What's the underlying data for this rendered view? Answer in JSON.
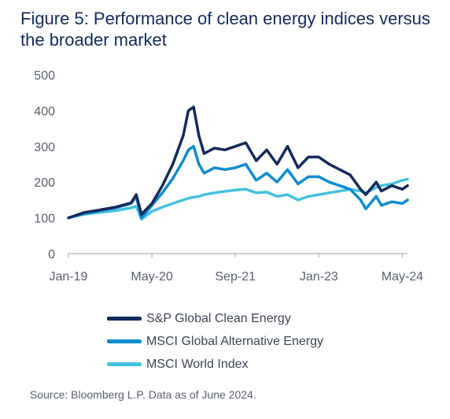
{
  "title": "Figure 5: Performance of clean energy indices versus the broader market",
  "source": "Source: Bloomberg L.P. Data as of June 2024.",
  "chart_data": {
    "type": "line",
    "title": "Figure 5: Performance of clean energy indices versus the broader market",
    "xlabel": "",
    "ylabel": "",
    "ylim": [
      0,
      500
    ],
    "yticks": [
      0,
      100,
      200,
      300,
      400,
      500
    ],
    "xlim": [
      "2019-01",
      "2024-06"
    ],
    "xticks": [
      {
        "label": "Jan-19",
        "date": "2019-01"
      },
      {
        "label": "May-20",
        "date": "2020-05"
      },
      {
        "label": "Sep-21",
        "date": "2021-09"
      },
      {
        "label": "Jan-23",
        "date": "2023-01"
      },
      {
        "label": "May-24",
        "date": "2024-05"
      }
    ],
    "grid": false,
    "legend_position": "bottom",
    "x": [
      "2019-01",
      "2019-04",
      "2019-07",
      "2019-10",
      "2020-01",
      "2020-02",
      "2020-03",
      "2020-05",
      "2020-07",
      "2020-09",
      "2020-11",
      "2020-12",
      "2021-01",
      "2021-02",
      "2021-03",
      "2021-05",
      "2021-07",
      "2021-09",
      "2021-11",
      "2022-01",
      "2022-03",
      "2022-05",
      "2022-07",
      "2022-09",
      "2022-11",
      "2023-01",
      "2023-03",
      "2023-05",
      "2023-07",
      "2023-09",
      "2023-10",
      "2023-12",
      "2024-01",
      "2024-03",
      "2024-05",
      "2024-06"
    ],
    "series": [
      {
        "name": "S&P Global Clean Energy",
        "color": "#142b5a",
        "values": [
          100,
          115,
          122,
          130,
          142,
          165,
          110,
          140,
          190,
          250,
          330,
          400,
          410,
          330,
          280,
          295,
          290,
          300,
          310,
          260,
          290,
          250,
          300,
          240,
          270,
          270,
          250,
          235,
          220,
          180,
          165,
          200,
          175,
          190,
          180,
          190
        ]
      },
      {
        "name": "MSCI Global Alternative Energy",
        "color": "#0e8ccd",
        "values": [
          100,
          112,
          120,
          128,
          140,
          160,
          100,
          135,
          170,
          210,
          260,
          290,
          300,
          250,
          225,
          240,
          235,
          240,
          250,
          205,
          225,
          200,
          235,
          195,
          215,
          215,
          200,
          190,
          180,
          150,
          125,
          160,
          135,
          145,
          140,
          150
        ]
      },
      {
        "name": "MSCI World Index",
        "color": "#46c1e0",
        "values": [
          100,
          110,
          115,
          120,
          128,
          132,
          96,
          118,
          130,
          140,
          150,
          155,
          158,
          160,
          165,
          170,
          174,
          178,
          180,
          170,
          172,
          160,
          165,
          150,
          160,
          165,
          170,
          175,
          180,
          175,
          170,
          185,
          190,
          195,
          205,
          208
        ]
      }
    ]
  }
}
